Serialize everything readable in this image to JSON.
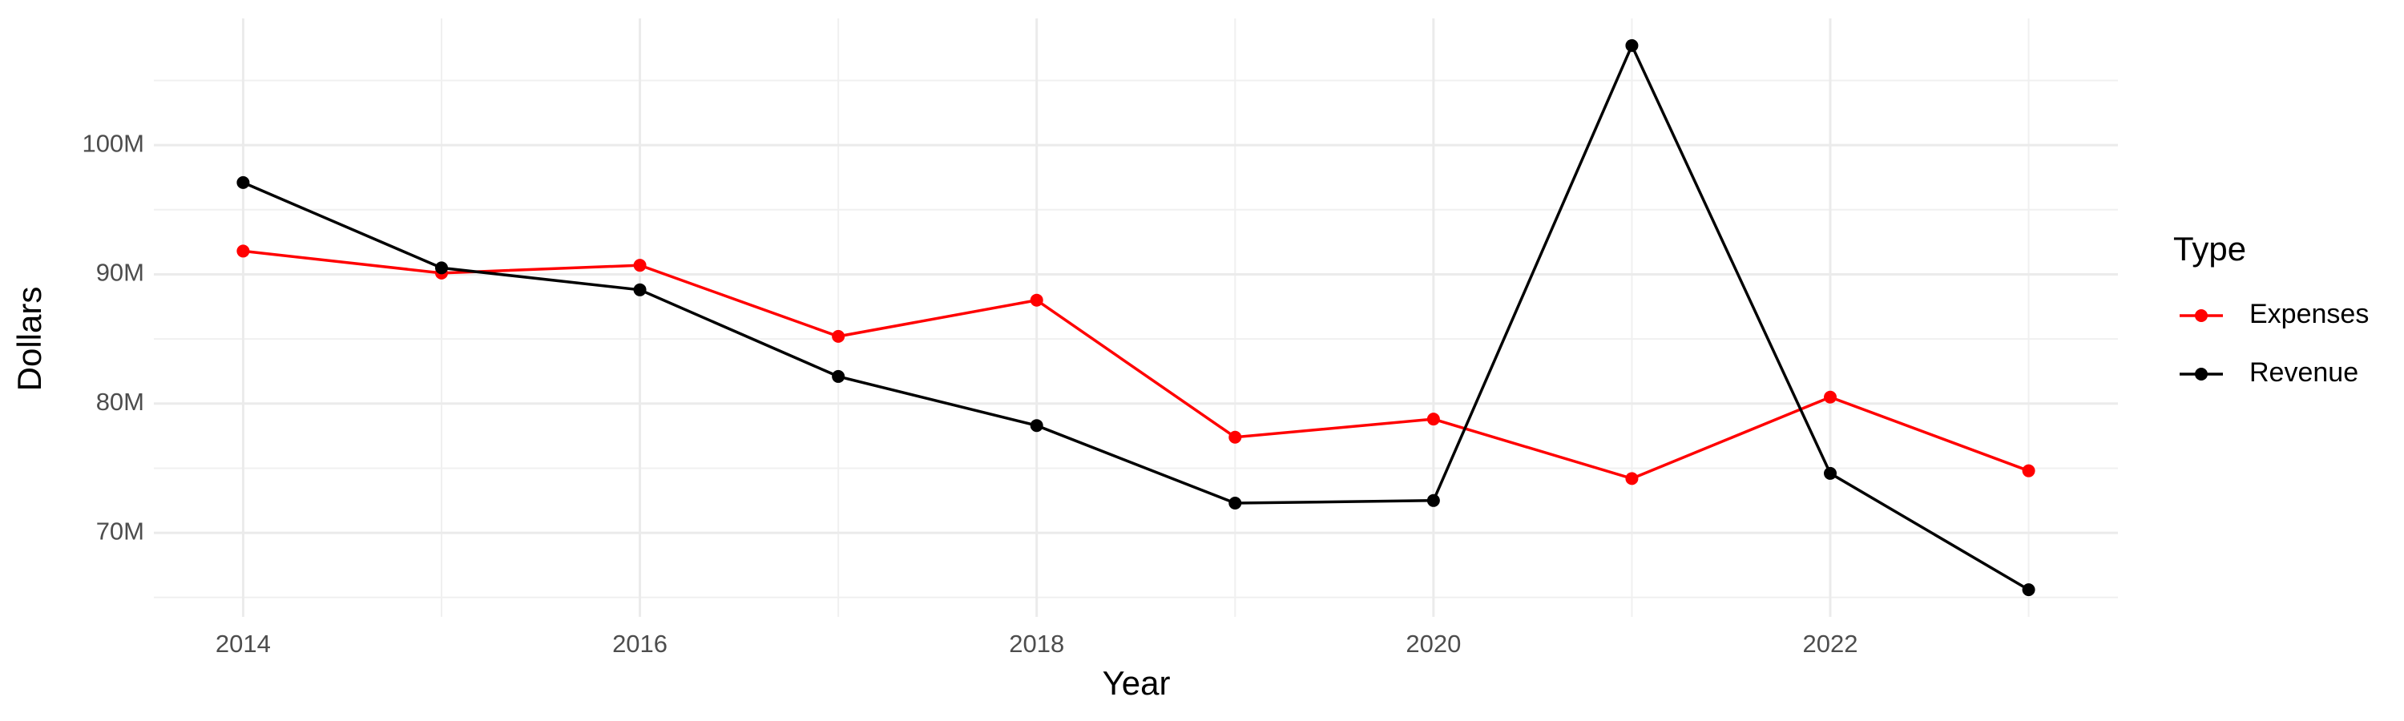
{
  "chart_data": {
    "type": "line",
    "x_label": "Year",
    "y_label": "Dollars",
    "x": [
      2014,
      2015,
      2016,
      2017,
      2018,
      2019,
      2020,
      2021,
      2022,
      2023
    ],
    "series": [
      {
        "name": "Expenses",
        "color": "#ff0000",
        "values": [
          91800000,
          90100000,
          90700000,
          85200000,
          88000000,
          77400000,
          78800000,
          74200000,
          80500000,
          74800000
        ]
      },
      {
        "name": "Revenue",
        "color": "#000000",
        "values": [
          97100000,
          90500000,
          88800000,
          82100000,
          78300000,
          72300000,
          72500000,
          107700000,
          74600000,
          65600000
        ]
      }
    ],
    "xlim": [
      2013.55,
      2023.45
    ],
    "xticks": [
      2014,
      2016,
      2018,
      2020,
      2022
    ],
    "ylim": [
      63500000,
      109800000
    ],
    "yticks": [
      {
        "value": 70000000,
        "label": "70M"
      },
      {
        "value": 80000000,
        "label": "80M"
      },
      {
        "value": 90000000,
        "label": "90M"
      },
      {
        "value": 100000000,
        "label": "100M"
      }
    ],
    "grid": true,
    "legend_title": "Type",
    "legend_position": "right"
  }
}
